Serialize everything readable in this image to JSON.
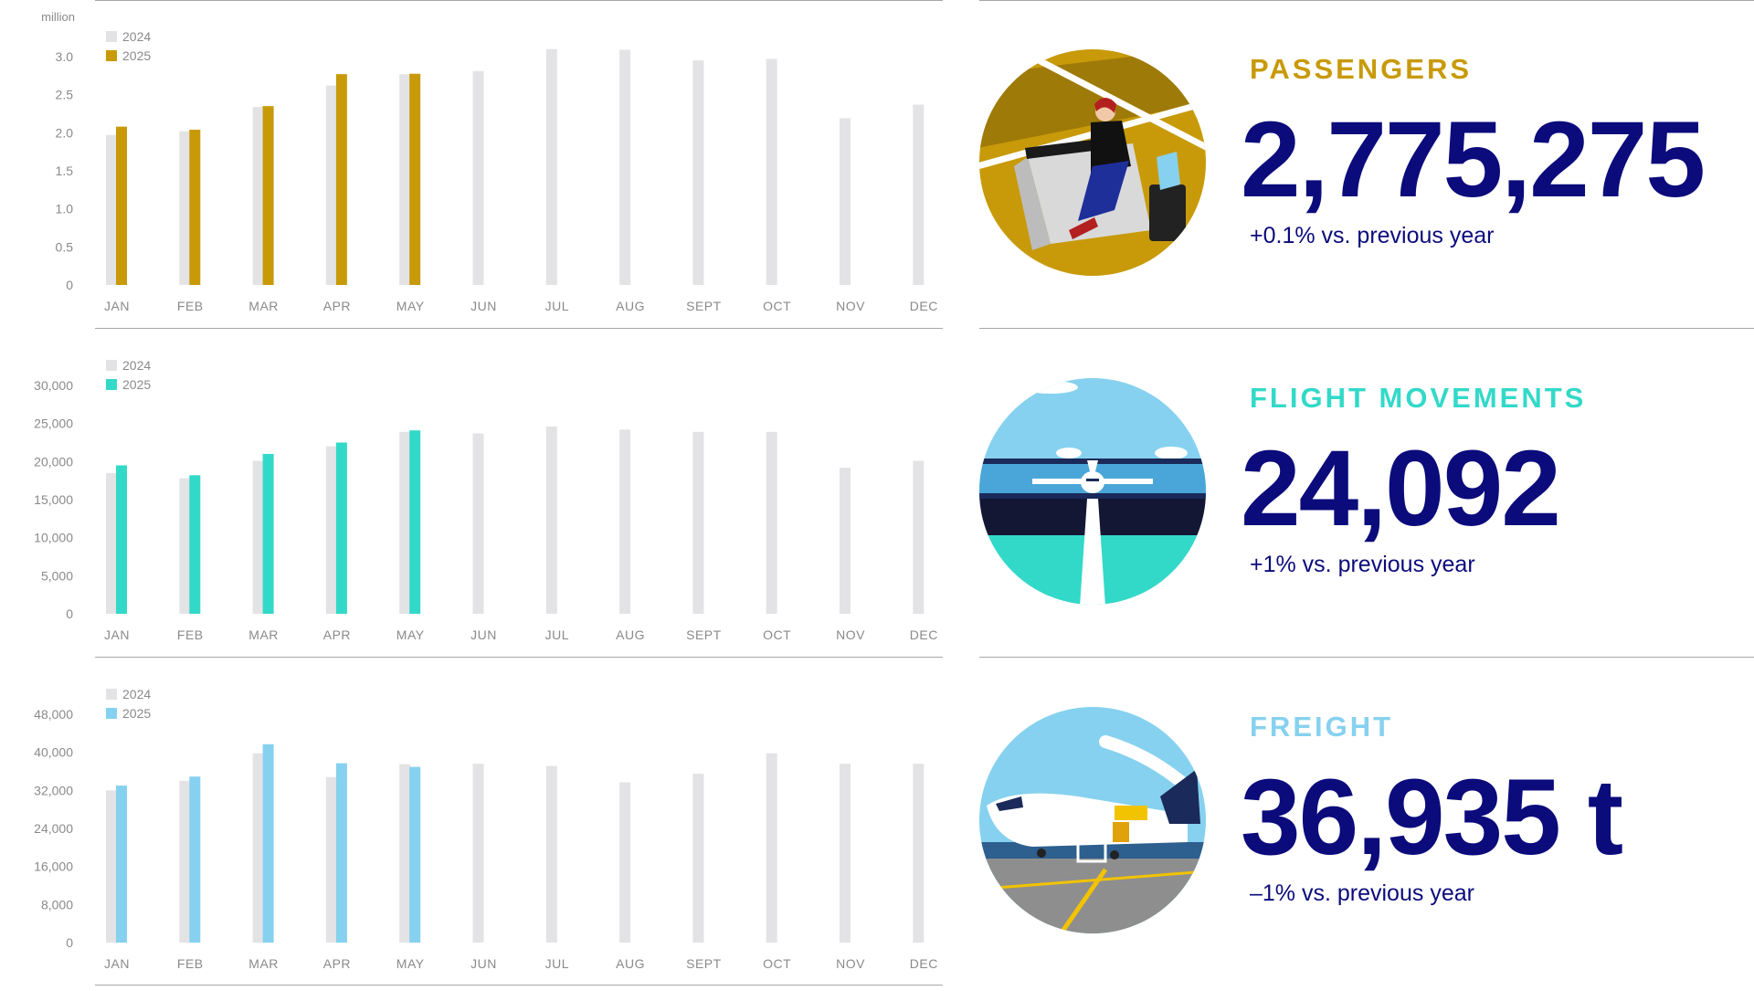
{
  "months": [
    "JAN",
    "FEB",
    "MAR",
    "APR",
    "MAY",
    "JUN",
    "JUL",
    "AUG",
    "SEPT",
    "OCT",
    "NOV",
    "DEC"
  ],
  "legend": {
    "prev": "2024",
    "curr": "2025"
  },
  "colors": {
    "grey": "#e3e3e5",
    "navy": "#0b0b7c",
    "passengers": "#c89a0a",
    "flights": "#33d9c8",
    "freight": "#86d1ef"
  },
  "kpis": {
    "passengers": {
      "title": "PASSENGERS",
      "value": "2,775,275",
      "delta": "+0.1% vs. previous year",
      "icon": "passenger-lounge-illustration"
    },
    "flights": {
      "title": "FLIGHT MOVEMENTS",
      "value": "24,092",
      "delta": "+1% vs. previous year",
      "icon": "runway-airplane-illustration"
    },
    "freight": {
      "title": "FREIGHT",
      "value": "36,935 t",
      "delta": "–1% vs. previous year",
      "icon": "cargo-plane-illustration"
    }
  },
  "chart_data": [
    {
      "type": "bar",
      "unit": "million",
      "categories": [
        "JAN",
        "FEB",
        "MAR",
        "APR",
        "MAY",
        "JUN",
        "JUL",
        "AUG",
        "SEPT",
        "OCT",
        "NOV",
        "DEC"
      ],
      "yticks": [
        "0",
        "0.5",
        "1.0",
        "1.5",
        "2.0",
        "2.5",
        "3.0"
      ],
      "ylim": [
        0,
        3.0
      ],
      "series": [
        {
          "name": "2024",
          "values": [
            1.97,
            2.02,
            2.34,
            2.62,
            2.77,
            2.81,
            3.1,
            3.09,
            2.95,
            2.97,
            2.19,
            2.37
          ]
        },
        {
          "name": "2025",
          "values": [
            2.08,
            2.04,
            2.35,
            2.77,
            2.775,
            null,
            null,
            null,
            null,
            null,
            null,
            null
          ]
        }
      ],
      "legend": "top-left",
      "grid": false
    },
    {
      "type": "bar",
      "unit": "",
      "categories": [
        "JAN",
        "FEB",
        "MAR",
        "APR",
        "MAY",
        "JUN",
        "JUL",
        "AUG",
        "SEPT",
        "OCT",
        "NOV",
        "DEC"
      ],
      "yticks": [
        "0",
        "5,000",
        "10,000",
        "15,000",
        "20,000",
        "25,000",
        "30,000"
      ],
      "ylim": [
        0,
        30000
      ],
      "series": [
        {
          "name": "2024",
          "values": [
            18500,
            17800,
            20100,
            22000,
            23900,
            23700,
            24600,
            24200,
            23900,
            23900,
            19200,
            20100
          ]
        },
        {
          "name": "2025",
          "values": [
            19500,
            18200,
            21000,
            22500,
            24092,
            null,
            null,
            null,
            null,
            null,
            null,
            null
          ]
        }
      ],
      "legend": "top-left",
      "grid": false
    },
    {
      "type": "bar",
      "unit": "",
      "categories": [
        "JAN",
        "FEB",
        "MAR",
        "APR",
        "MAY",
        "JUN",
        "JUL",
        "AUG",
        "SEPT",
        "OCT",
        "NOV",
        "DEC"
      ],
      "yticks": [
        "0",
        "8,000",
        "16,000",
        "24,000",
        "32,000",
        "40,000",
        "48,000"
      ],
      "ylim": [
        0,
        48000
      ],
      "series": [
        {
          "name": "2024",
          "values": [
            32000,
            34000,
            39800,
            34800,
            37500,
            37600,
            37100,
            33700,
            35500,
            39800,
            37600,
            37600
          ]
        },
        {
          "name": "2025",
          "values": [
            33000,
            34900,
            41700,
            37700,
            36935,
            null,
            null,
            null,
            null,
            null,
            null,
            null
          ]
        }
      ],
      "legend": "top-left",
      "grid": false
    }
  ]
}
